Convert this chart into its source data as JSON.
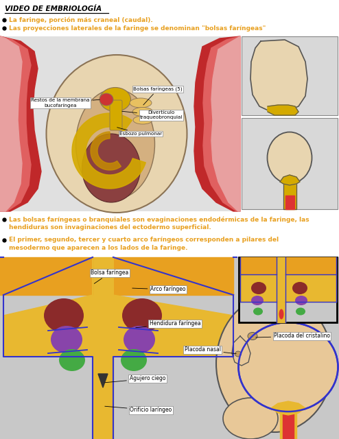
{
  "title": "VIDEO DE EMBRIOLOGÍA",
  "orange": "#e8a020",
  "b1": "La faringe, porción más craneal (caudal).",
  "b2": "Las proyecciones laterales de la faringe se denominan \"bolsas faríngeas\"",
  "b3a": "Las bolsas faríngeas o branquiales son evaginaciones endodérmicas de la faringe, las",
  "b3b": "hendiduras son invaginaciones del ectodermo superficial.",
  "b4a": "El primer, segundo, tercer y cuarto arco faríngeos corresponden a pilares del",
  "b4b": "mesodermo que aparecen a los lados de la faringe.",
  "lbl_bolsas": "Bolsas faríngeas (5)",
  "lbl_restos": "Restos de la membrana\nbucofaríngea",
  "lbl_divert": "Divertículo\ntraqueobronquial",
  "lbl_esbozo": "Esbozo pulmonar",
  "lbl_bolsa2": "Bolsa faríngea",
  "lbl_arco": "Arco faríngeo",
  "lbl_hendidura": "Hendidura faríngea",
  "lbl_placoda_n": "Placoda nasal",
  "lbl_placoda_c": "Placoda del cristalino",
  "lbl_agujero": "Agujero ciego",
  "lbl_orificio": "Orificio laríngeo",
  "red_dark": "#c0282a",
  "red_medium": "#e06060",
  "red_light": "#e8a0a0",
  "beige_dark": "#d4b080",
  "beige_light": "#e8d5b0",
  "yellow": "#d4aa00",
  "yellow_orange": "#e8a820",
  "orange_arch": "#e8a020",
  "dark_red_arch": "#8b2020",
  "purple_arch": "#8844aa",
  "green_arch": "#44aa44",
  "blue_outline": "#3333cc",
  "skin": "#e8c898",
  "skin_dark": "#c8a060"
}
